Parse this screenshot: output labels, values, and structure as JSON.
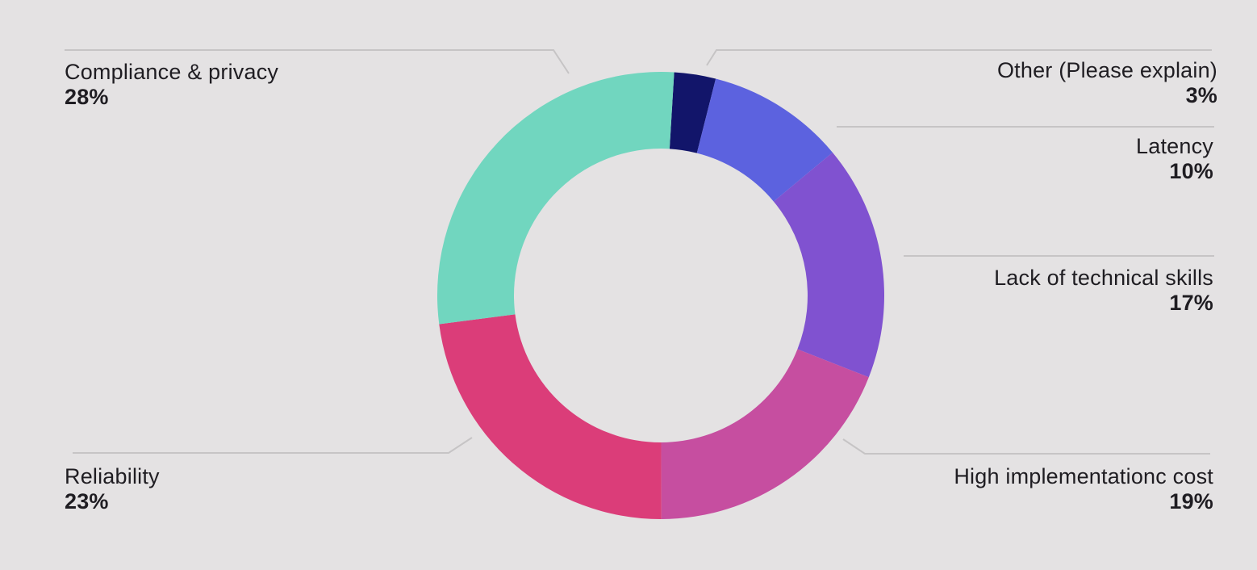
{
  "chart_data": {
    "type": "pie",
    "donut": true,
    "start": "top, clockwise",
    "slices": [
      {
        "label": "Other (Please explain)",
        "pct_label": "3%",
        "value": 3,
        "color": "#12156a"
      },
      {
        "label": "Latency",
        "pct_label": "10%",
        "value": 10,
        "color": "#5c62df"
      },
      {
        "label": "Lack of technical skills",
        "pct_label": "17%",
        "value": 17,
        "color": "#8052d0"
      },
      {
        "label": "High implementationc cost",
        "pct_label": "19%",
        "value": 19,
        "color": "#c64ea0"
      },
      {
        "label": "Reliability",
        "pct_label": "23%",
        "value": 23,
        "color": "#db3d79"
      },
      {
        "label": "Compliance & privacy",
        "pct_label": "28%",
        "value": 28,
        "color": "#71d6bf"
      }
    ],
    "background": "#e4e2e3",
    "leader_color": "#c6c4c5"
  }
}
